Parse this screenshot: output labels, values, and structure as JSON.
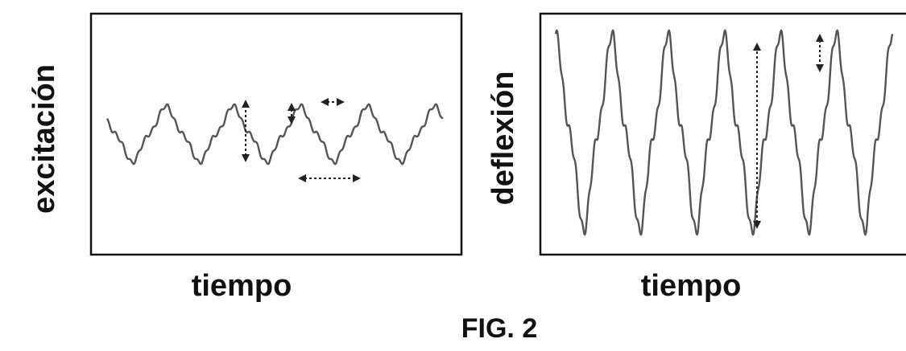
{
  "figure": {
    "caption": "FIG. 2",
    "panels": [
      {
        "id": "left",
        "ylabel": "excitación",
        "xlabel": "tiempo",
        "signal": {
          "cycles": 5,
          "relative_amplitude": 0.4,
          "trace_color": "#555555",
          "annotations": [
            "vertical-double-arrow",
            "small-vertical-double-arrow",
            "small-horizontal-double-arrow",
            "horizontal-double-arrow"
          ]
        }
      },
      {
        "id": "right",
        "ylabel": "deflexión",
        "xlabel": "tiempo",
        "signal": {
          "cycles": 6,
          "relative_amplitude": 1.0,
          "trace_color": "#555555",
          "annotations": [
            "tall-vertical-double-arrow",
            "small-vertical-double-arrow"
          ]
        }
      }
    ],
    "colors": {
      "frame": "#111111",
      "text": "#111111",
      "arrow": "#222222"
    }
  }
}
